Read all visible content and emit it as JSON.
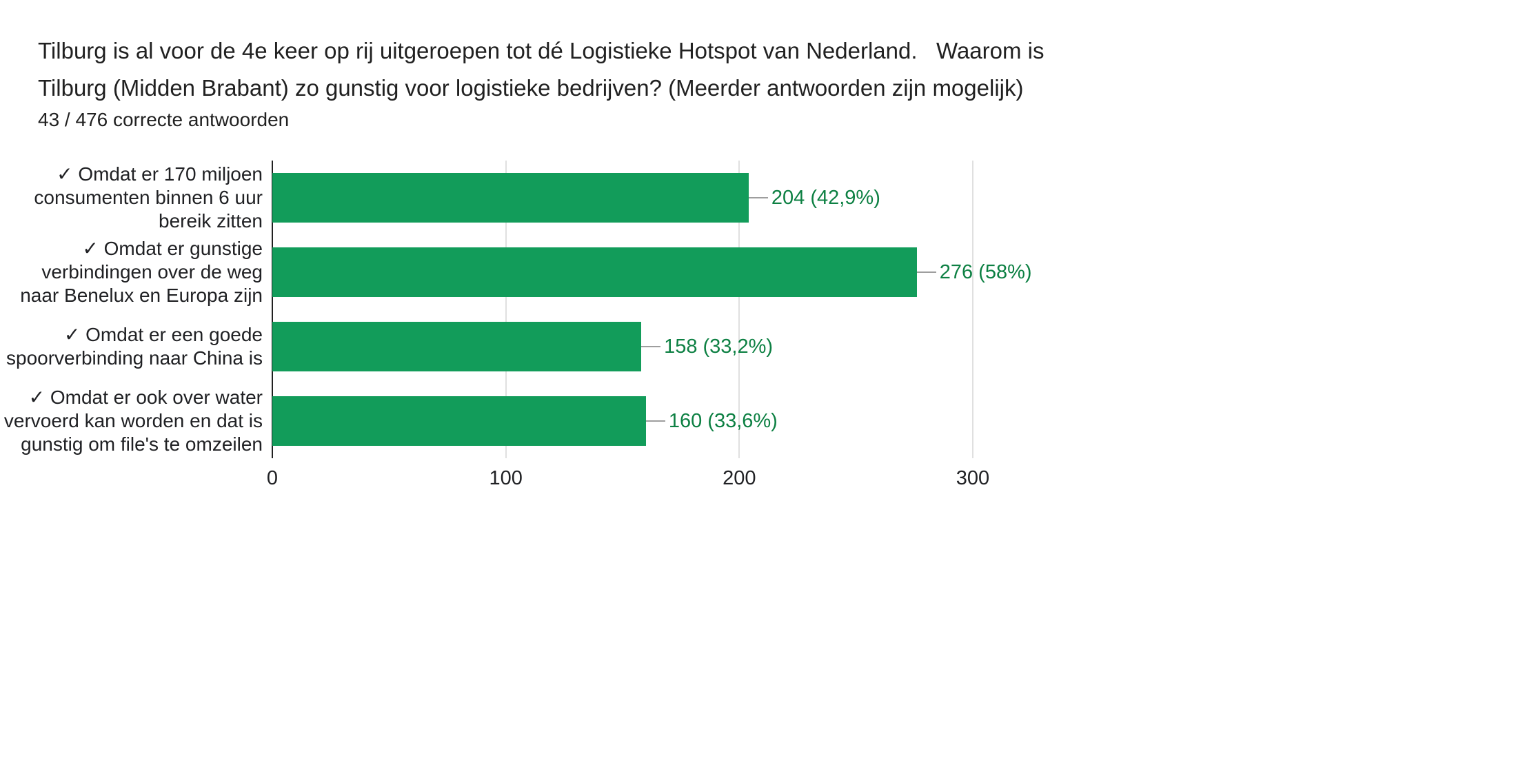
{
  "chart_data": {
    "type": "bar",
    "orientation": "horizontal",
    "title": "Tilburg is al voor de 4e keer op rij uitgeroepen tot dé Logistieke Hotspot van Nederland.   Waarom is Tilburg (Midden Brabant) zo gunstig voor logistieke bedrijven? (Meerder antwoorden zijn mogelijk)",
    "subtitle": "43 / 476 correcte antwoorden",
    "categories": [
      "✓ Omdat er 170 miljoen consumenten binnen 6 uur bereik zitten",
      "✓ Omdat er gunstige verbindingen over de weg naar Benelux en Europa zijn",
      "✓ Omdat er een goede spoorverbinding naar China is",
      "✓ Omdat er ook over water vervoerd kan worden en dat is gunstig om file's te omzeilen"
    ],
    "values": [
      204,
      276,
      158,
      160
    ],
    "value_labels": [
      "204 (42,9%)",
      "276 (58%)",
      "158 (33,2%)",
      "160 (33,6%)"
    ],
    "total_responses": 476,
    "xlim": [
      0,
      300
    ],
    "x_ticks": [
      0,
      100,
      200,
      300
    ],
    "grid": true,
    "legend": "none",
    "bar_color": "#129c5a",
    "value_label_color": "#0d8043",
    "gridline_color": "#e0e0e0",
    "axis_color": "#212121"
  }
}
